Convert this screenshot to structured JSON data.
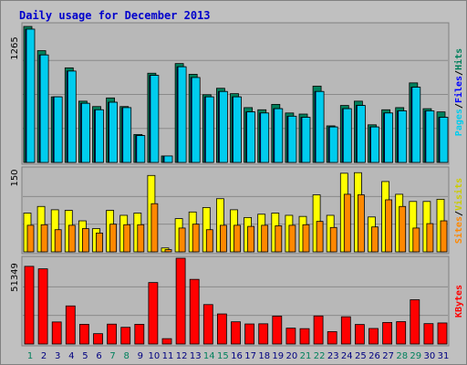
{
  "title": "Daily usage for December 2013",
  "colors": {
    "background": "#c0c0c0",
    "plot": "#b8b8b8",
    "title": "#0000cc",
    "hits": "#00805c",
    "files": "#0000ff",
    "pages": "#00ccee",
    "visits": "#ffff00",
    "sites": "#ff8800",
    "kbytes": "#ff0000",
    "weekend": "#00805c",
    "weekday": "#000080"
  },
  "right_labels": {
    "top": [
      "Hits",
      "Files",
      "Pages"
    ],
    "middle": [
      "Visits",
      "Sites"
    ],
    "bottom": [
      "KBytes"
    ]
  },
  "chart_data": [
    {
      "type": "bar",
      "name": "hits-files-pages",
      "y_max_label": "1265",
      "ylim": [
        0,
        1265
      ],
      "categories": [
        "1",
        "2",
        "3",
        "4",
        "5",
        "6",
        "7",
        "8",
        "9",
        "10",
        "11",
        "12",
        "13",
        "14",
        "15",
        "16",
        "17",
        "18",
        "19",
        "20",
        "21",
        "22",
        "23",
        "24",
        "25",
        "26",
        "27",
        "28",
        "29",
        "30",
        "31"
      ],
      "weekend_days": [
        1,
        7,
        8,
        14,
        15,
        21,
        22,
        28,
        29
      ],
      "series": [
        {
          "name": "Hits",
          "values": [
            1265,
            1040,
            610,
            880,
            570,
            520,
            600,
            520,
            260,
            830,
            60,
            920,
            820,
            630,
            690,
            640,
            510,
            490,
            540,
            460,
            450,
            710,
            340,
            530,
            570,
            350,
            490,
            510,
            740,
            500,
            470
          ]
        },
        {
          "name": "Files",
          "values": [
            1240,
            1000,
            610,
            850,
            550,
            490,
            560,
            510,
            250,
            810,
            60,
            890,
            790,
            610,
            660,
            610,
            470,
            460,
            500,
            430,
            420,
            660,
            330,
            500,
            530,
            330,
            460,
            480,
            700,
            480,
            420
          ]
        },
        {
          "name": "Pages",
          "values": [
            1240,
            1000,
            610,
            850,
            550,
            490,
            560,
            510,
            250,
            810,
            60,
            890,
            790,
            610,
            660,
            610,
            470,
            460,
            500,
            430,
            420,
            660,
            330,
            500,
            530,
            330,
            460,
            480,
            700,
            480,
            420
          ]
        }
      ]
    },
    {
      "type": "bar",
      "name": "visits-sites",
      "y_max_label": "150",
      "ylim": [
        0,
        150
      ],
      "categories": [
        "1",
        "2",
        "3",
        "4",
        "5",
        "6",
        "7",
        "8",
        "9",
        "10",
        "11",
        "12",
        "13",
        "14",
        "15",
        "16",
        "17",
        "18",
        "19",
        "20",
        "21",
        "22",
        "23",
        "24",
        "25",
        "26",
        "27",
        "28",
        "29",
        "30",
        "31"
      ],
      "series": [
        {
          "name": "Visits",
          "values": [
            70,
            82,
            76,
            75,
            56,
            42,
            75,
            66,
            70,
            138,
            7,
            60,
            72,
            80,
            96,
            76,
            62,
            68,
            70,
            66,
            64,
            103,
            66,
            142,
            143,
            63,
            127,
            104,
            91,
            91,
            95
          ]
        },
        {
          "name": "Sites",
          "values": [
            48,
            49,
            40,
            48,
            42,
            34,
            50,
            49,
            49,
            87,
            4,
            43,
            50,
            40,
            48,
            48,
            46,
            48,
            47,
            48,
            49,
            55,
            44,
            104,
            103,
            45,
            94,
            82,
            43,
            51,
            56
          ]
        }
      ]
    },
    {
      "type": "bar",
      "name": "kbytes",
      "y_max_label": "51349",
      "ylim": [
        0,
        51349
      ],
      "categories": [
        "1",
        "2",
        "3",
        "4",
        "5",
        "6",
        "7",
        "8",
        "9",
        "10",
        "11",
        "12",
        "13",
        "14",
        "15",
        "16",
        "17",
        "18",
        "19",
        "20",
        "21",
        "22",
        "23",
        "24",
        "25",
        "26",
        "27",
        "28",
        "29",
        "30",
        "31"
      ],
      "series": [
        {
          "name": "KBytes",
          "values": [
            46500,
            45000,
            13200,
            22800,
            11800,
            6200,
            11900,
            10000,
            11800,
            36800,
            3200,
            51349,
            38700,
            23600,
            18000,
            13300,
            12000,
            12100,
            16700,
            9500,
            9200,
            16800,
            7400,
            16300,
            11700,
            9300,
            12900,
            13400,
            26500,
            12200,
            12600
          ]
        }
      ]
    }
  ],
  "days": [
    "1",
    "2",
    "3",
    "4",
    "5",
    "6",
    "7",
    "8",
    "9",
    "10",
    "11",
    "12",
    "13",
    "14",
    "15",
    "16",
    "17",
    "18",
    "19",
    "20",
    "21",
    "22",
    "23",
    "24",
    "25",
    "26",
    "27",
    "28",
    "29",
    "30",
    "31"
  ]
}
